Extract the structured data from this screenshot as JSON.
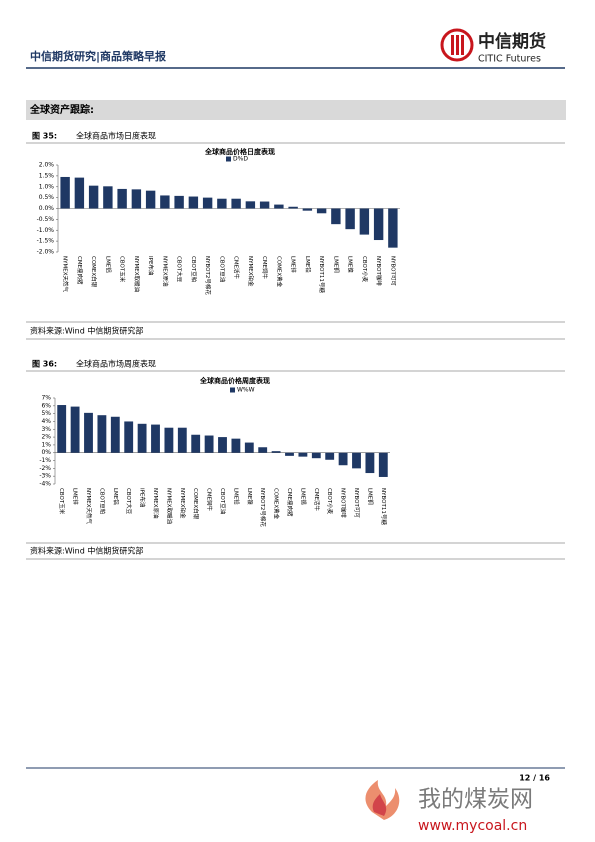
{
  "header": {
    "title": "中信期货研究|商品策略早报",
    "logo_cn": "中信期货",
    "logo_en": "CITIC Futures"
  },
  "section_title": "全球资产跟踪:",
  "figures": [
    {
      "label": "图 35:",
      "caption": "全球商品市场日度表现",
      "source": "资料来源:Wind 中信期货研究部"
    },
    {
      "label": "图 36:",
      "caption": "全球商品市场周度表现",
      "source": "资料来源:Wind 中信期货研究部"
    }
  ],
  "chart_data": [
    {
      "type": "bar",
      "title": "全球商品价格日度表现",
      "categories": [
        "NYMEX天然气",
        "CME瘦肉猪",
        "COMEX白银",
        "LME铝",
        "CBOT玉米",
        "NYMEX取暖油",
        "IPE布油",
        "NYMEX原油",
        "CBOT大豆",
        "CBOT豆粕",
        "NYBOT2号棉花",
        "CBOT豆油",
        "CME活牛",
        "NYMEX铂金",
        "CME饲牛",
        "COMEX黄金",
        "LME锌",
        "LME铅",
        "NYBOT11号糖",
        "LME铜",
        "LME镍",
        "CBOT小麦",
        "NYBOT咖啡",
        "NYBOT可可"
      ],
      "series": [
        {
          "name": "D%D",
          "color": "#1f3864",
          "values": [
            1.45,
            1.42,
            1.05,
            1.02,
            0.9,
            0.88,
            0.82,
            0.6,
            0.58,
            0.55,
            0.5,
            0.45,
            0.45,
            0.33,
            0.32,
            0.18,
            0.08,
            -0.1,
            -0.22,
            -0.72,
            -0.95,
            -1.2,
            -1.45,
            -1.8
          ]
        }
      ],
      "ylim": [
        -2,
        2
      ],
      "yticks": [
        {
          "value": -2,
          "label": "-2.0%"
        },
        {
          "value": -1.5,
          "label": "-1.5%"
        },
        {
          "value": -1,
          "label": "-1.0%"
        },
        {
          "value": -0.5,
          "label": "-0.5%"
        },
        {
          "value": 0,
          "label": "0.0%"
        },
        {
          "value": 0.5,
          "label": "0.5%"
        },
        {
          "value": 1,
          "label": "1.0%"
        },
        {
          "value": 1.5,
          "label": "1.5%"
        },
        {
          "value": 2,
          "label": "2.0%"
        }
      ],
      "grid": false
    },
    {
      "type": "bar",
      "title": "全球商品价格周度表现",
      "categories": [
        "CBOT玉米",
        "LME锌",
        "NYMEX天然气",
        "CBOT豆粕",
        "LME铝",
        "CBOT大豆",
        "IPE布油",
        "NYMEX原油",
        "NYMEX取暖油",
        "NYMEX铂金",
        "COMEX白银",
        "CME饲牛",
        "CBOT豆油",
        "LME铅",
        "LME镍",
        "NYBOT2号棉花",
        "COMEX黄金",
        "CME瘦肉猪",
        "LME锡",
        "CME活牛",
        "CBOT小麦",
        "NYBOT咖啡",
        "NYBOT可可",
        "LME铜",
        "NYBOT11号糖"
      ],
      "series": [
        {
          "name": "W%W",
          "color": "#1f3864",
          "values": [
            6.1,
            5.9,
            5.1,
            4.8,
            4.6,
            4.0,
            3.7,
            3.6,
            3.2,
            3.2,
            2.3,
            2.2,
            2.0,
            1.8,
            1.3,
            0.7,
            0.2,
            -0.4,
            -0.5,
            -0.7,
            -0.9,
            -1.6,
            -2.0,
            -2.6,
            -3.1
          ]
        }
      ],
      "ylim": [
        -4,
        7
      ],
      "yticks": [
        {
          "value": -4,
          "label": "-4%"
        },
        {
          "value": -3,
          "label": "-3%"
        },
        {
          "value": -2,
          "label": "-2%"
        },
        {
          "value": -1,
          "label": "-1%"
        },
        {
          "value": 0,
          "label": "0%"
        },
        {
          "value": 1,
          "label": "1%"
        },
        {
          "value": 2,
          "label": "2%"
        },
        {
          "value": 3,
          "label": "3%"
        },
        {
          "value": 4,
          "label": "4%"
        },
        {
          "value": 5,
          "label": "5%"
        },
        {
          "value": 6,
          "label": "6%"
        },
        {
          "value": 7,
          "label": "7%"
        }
      ],
      "grid": false
    }
  ],
  "footer": {
    "page": "12 / 16"
  },
  "watermark": {
    "name": "我的煤炭网",
    "url": "www.mycoal.cn"
  }
}
